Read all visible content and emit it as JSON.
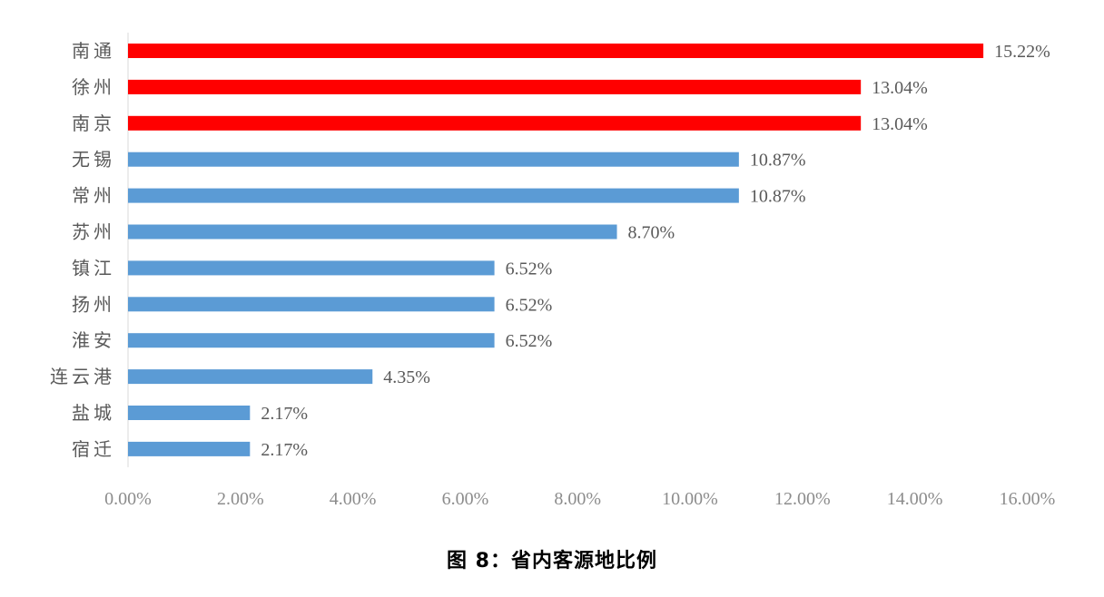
{
  "chart_data": {
    "type": "bar",
    "orientation": "horizontal",
    "categories": [
      "南通",
      "徐州",
      "南京",
      "无锡",
      "常州",
      "苏州",
      "镇江",
      "扬州",
      "淮安",
      "连云港",
      "盐城",
      "宿迁"
    ],
    "values": [
      15.22,
      13.04,
      13.04,
      10.87,
      10.87,
      8.7,
      6.52,
      6.52,
      6.52,
      4.35,
      2.17,
      2.17
    ],
    "value_labels": [
      "15.22%",
      "13.04%",
      "13.04%",
      "10.87%",
      "10.87%",
      "8.70%",
      "6.52%",
      "6.52%",
      "6.52%",
      "4.35%",
      "2.17%",
      "2.17%"
    ],
    "bar_colors": [
      "#ff0000",
      "#ff0000",
      "#ff0000",
      "#5b9bd5",
      "#5b9bd5",
      "#5b9bd5",
      "#5b9bd5",
      "#5b9bd5",
      "#5b9bd5",
      "#5b9bd5",
      "#5b9bd5",
      "#5b9bd5"
    ],
    "xlim": [
      0,
      16
    ],
    "xticks": [
      "0.00%",
      "2.00%",
      "4.00%",
      "6.00%",
      "8.00%",
      "10.00%",
      "12.00%",
      "14.00%",
      "16.00%"
    ],
    "grid": false,
    "legend": "none",
    "title": "图 8：省内客源地比例",
    "xlabel": "",
    "ylabel": ""
  },
  "colors": {
    "highlight": "#ff0000",
    "default": "#5b9bd5",
    "axis": "#d9d9d9"
  }
}
